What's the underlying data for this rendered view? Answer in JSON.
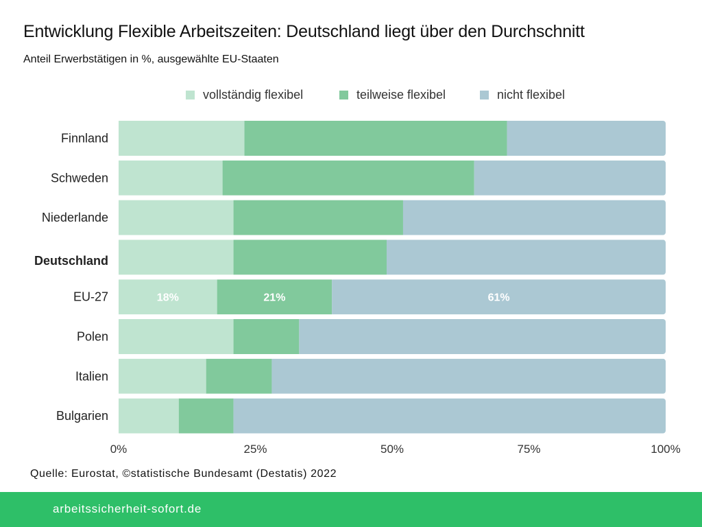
{
  "header": {
    "title": "Entwicklung Flexible Arbeitszeiten: Deutschland liegt über den Durchschnitt",
    "subtitle": "Anteil Erwerbstätigen in %, ausgewählte EU-Staaten"
  },
  "colors": {
    "vollstaendig": "#bfe4d0",
    "teilweise": "#81c99c",
    "nicht": "#abc8d3",
    "footer": "#2ebf68",
    "label_on_bar": "#ffffff"
  },
  "chart_data": {
    "type": "bar",
    "orientation": "horizontal",
    "stacked": true,
    "title": "Entwicklung Flexible Arbeitszeiten: Deutschland liegt über den Durchschnitt",
    "subtitle": "Anteil Erwerbstätigen in %, ausgewählte EU-Staaten",
    "xlabel": "",
    "ylabel": "",
    "xlim": [
      0,
      100
    ],
    "x_ticks": [
      "0%",
      "25%",
      "50%",
      "75%",
      "100%"
    ],
    "x_tick_values": [
      0,
      25,
      50,
      75,
      100
    ],
    "grid": false,
    "legend_position": "top-center",
    "categories": [
      "Finnland",
      "Schweden",
      "Niederlande",
      "Deutschland",
      "EU-27",
      "Polen",
      "Italien",
      "Bulgarien"
    ],
    "highlighted_category": "Deutschland",
    "series": [
      {
        "name": "vollständig flexibel",
        "values": [
          23,
          19,
          21,
          21,
          18,
          21,
          16,
          11
        ]
      },
      {
        "name": "teilweise flexibel",
        "values": [
          48,
          46,
          31,
          28,
          21,
          12,
          12,
          10
        ]
      },
      {
        "name": "nicht flexibel",
        "values": [
          29,
          35,
          48,
          51,
          61,
          67,
          72,
          79
        ]
      }
    ],
    "data_labels": [
      {
        "category": "EU-27",
        "series": "vollständig flexibel",
        "text": "18%"
      },
      {
        "category": "EU-27",
        "series": "teilweise flexibel",
        "text": "21%"
      },
      {
        "category": "EU-27",
        "series": "nicht flexibel",
        "text": "61%"
      }
    ]
  },
  "legend": [
    {
      "label": "vollständig flexibel",
      "color_key": "vollstaendig"
    },
    {
      "label": "teilweise flexibel",
      "color_key": "teilweise"
    },
    {
      "label": "nicht flexibel",
      "color_key": "nicht"
    }
  ],
  "source": "Quelle: Eurostat, ©statistische Bundesamt (Destatis) 2022",
  "footer": {
    "site": "arbeitssicherheit-sofort.de"
  }
}
